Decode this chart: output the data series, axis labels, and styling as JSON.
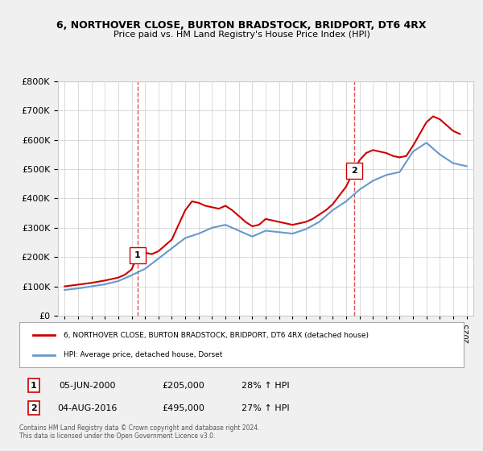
{
  "title": "6, NORTHOVER CLOSE, BURTON BRADSTOCK, BRIDPORT, DT6 4RX",
  "subtitle": "Price paid vs. HM Land Registry's House Price Index (HPI)",
  "legend_line1": "6, NORTHOVER CLOSE, BURTON BRADSTOCK, BRIDPORT, DT6 4RX (detached house)",
  "legend_line2": "HPI: Average price, detached house, Dorset",
  "transaction1_label": "1",
  "transaction1_date": "05-JUN-2000",
  "transaction1_price": "£205,000",
  "transaction1_hpi": "28% ↑ HPI",
  "transaction2_label": "2",
  "transaction2_date": "04-AUG-2016",
  "transaction2_price": "£495,000",
  "transaction2_hpi": "27% ↑ HPI",
  "footer": "Contains HM Land Registry data © Crown copyright and database right 2024.\nThis data is licensed under the Open Government Licence v3.0.",
  "red_color": "#cc0000",
  "blue_color": "#6699cc",
  "marker1_x": 2000.43,
  "marker1_y": 205000,
  "marker2_x": 2016.59,
  "marker2_y": 495000,
  "years": [
    1995,
    1996,
    1997,
    1998,
    1999,
    2000,
    2001,
    2002,
    2003,
    2004,
    2005,
    2006,
    2007,
    2008,
    2009,
    2010,
    2011,
    2012,
    2013,
    2014,
    2015,
    2016,
    2017,
    2018,
    2019,
    2020,
    2021,
    2022,
    2023,
    2024,
    2025
  ],
  "hpi_values": [
    88000,
    93000,
    100000,
    107000,
    118000,
    138000,
    160000,
    195000,
    230000,
    265000,
    280000,
    300000,
    310000,
    290000,
    270000,
    290000,
    285000,
    280000,
    295000,
    320000,
    360000,
    390000,
    430000,
    460000,
    480000,
    490000,
    560000,
    590000,
    550000,
    520000,
    510000
  ],
  "price_paid_x": [
    1995.0,
    1995.5,
    1996.0,
    1996.5,
    1997.0,
    1997.5,
    1998.0,
    1998.5,
    1999.0,
    1999.5,
    2000.0,
    2000.43,
    2001.0,
    2001.5,
    2002.0,
    2002.5,
    2003.0,
    2003.5,
    2004.0,
    2004.5,
    2005.0,
    2005.5,
    2006.0,
    2006.5,
    2007.0,
    2007.5,
    2008.0,
    2008.5,
    2009.0,
    2009.5,
    2010.0,
    2010.5,
    2011.0,
    2011.5,
    2012.0,
    2012.5,
    2013.0,
    2013.5,
    2014.0,
    2014.5,
    2015.0,
    2015.5,
    2016.0,
    2016.59,
    2017.0,
    2017.5,
    2018.0,
    2018.5,
    2019.0,
    2019.5,
    2020.0,
    2020.5,
    2021.0,
    2021.5,
    2022.0,
    2022.5,
    2023.0,
    2023.5,
    2024.0,
    2024.5
  ],
  "price_paid_y": [
    100000,
    103000,
    106000,
    109000,
    112000,
    116000,
    120000,
    125000,
    130000,
    140000,
    158000,
    205000,
    215000,
    210000,
    220000,
    240000,
    260000,
    310000,
    360000,
    390000,
    385000,
    375000,
    370000,
    365000,
    375000,
    360000,
    340000,
    320000,
    305000,
    310000,
    330000,
    325000,
    320000,
    315000,
    310000,
    315000,
    320000,
    330000,
    345000,
    360000,
    380000,
    410000,
    440000,
    495000,
    530000,
    555000,
    565000,
    560000,
    555000,
    545000,
    540000,
    545000,
    580000,
    620000,
    660000,
    680000,
    670000,
    650000,
    630000,
    620000
  ],
  "background_color": "#f0f0f0",
  "plot_bg_color": "#ffffff",
  "ylim": [
    0,
    800000
  ],
  "xlim_start": 1994.5,
  "xlim_end": 2025.5
}
